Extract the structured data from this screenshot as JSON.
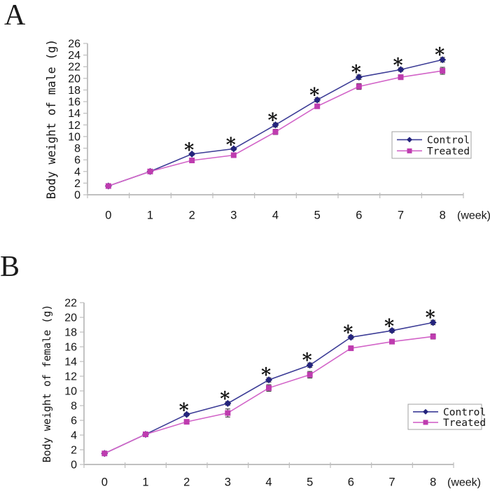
{
  "figure": {
    "background": "#ffffff",
    "panels": [
      {
        "label": "A"
      },
      {
        "label": "B"
      }
    ]
  },
  "chart_data": [
    {
      "type": "line",
      "panel": "A",
      "ylabel": "Body weight of male (g)",
      "xlabel": "(week)",
      "x": [
        0,
        1,
        2,
        3,
        4,
        5,
        6,
        7,
        8
      ],
      "yticks": [
        0,
        2,
        4,
        6,
        8,
        10,
        12,
        14,
        16,
        18,
        20,
        22,
        24,
        26
      ],
      "ylim": [
        0,
        26
      ],
      "grid": false,
      "legend_position": "right-middle",
      "axis_color": "#9a9a9a",
      "tick_color": "#bdbdbd",
      "text_color": "#141414",
      "error_bar_color": "#3a3a3a",
      "significance": {
        "symbol": "*",
        "x": [
          2,
          3,
          4,
          5,
          6,
          7,
          8
        ],
        "above_series": "Control"
      },
      "series": [
        {
          "name": "Control",
          "marker": "diamond",
          "line_color": "#3C3C96",
          "marker_color": "#24247C",
          "values": [
            1.5,
            4.0,
            7.0,
            7.9,
            12.0,
            16.3,
            20.2,
            21.5,
            23.2
          ],
          "errors": [
            0.15,
            0.15,
            0.2,
            0.25,
            0.35,
            0.35,
            0.4,
            0.3,
            0.4
          ]
        },
        {
          "name": "Treated",
          "marker": "square",
          "line_color": "#D264C8",
          "marker_color": "#BE3CAF",
          "values": [
            1.5,
            4.0,
            5.9,
            6.8,
            10.8,
            15.2,
            18.6,
            20.2,
            21.3
          ],
          "errors": [
            0.15,
            0.15,
            0.2,
            0.25,
            0.45,
            0.35,
            0.5,
            0.4,
            0.6
          ]
        }
      ]
    },
    {
      "type": "line",
      "panel": "B",
      "ylabel": "Body weight of female (g)",
      "xlabel": "(week)",
      "x": [
        0,
        1,
        2,
        3,
        4,
        5,
        6,
        7,
        8
      ],
      "yticks": [
        0,
        2,
        4,
        6,
        8,
        10,
        12,
        14,
        16,
        18,
        20,
        22
      ],
      "ylim": [
        0,
        22
      ],
      "grid": false,
      "legend_position": "right-middle",
      "axis_color": "#9a9a9a",
      "tick_color": "#bdbdbd",
      "text_color": "#141414",
      "error_bar_color": "#3a3a3a",
      "significance": {
        "symbol": "*",
        "x": [
          2,
          3,
          4,
          5,
          6,
          7,
          8
        ],
        "above_series": "Control"
      },
      "series": [
        {
          "name": "Control",
          "marker": "diamond",
          "line_color": "#3C3C96",
          "marker_color": "#24247C",
          "values": [
            1.5,
            4.1,
            6.8,
            8.3,
            11.5,
            13.5,
            17.3,
            18.2,
            19.3
          ],
          "errors": [
            0.15,
            0.15,
            0.2,
            0.25,
            0.3,
            0.3,
            0.25,
            0.25,
            0.3
          ]
        },
        {
          "name": "Treated",
          "marker": "square",
          "line_color": "#D264C8",
          "marker_color": "#BE3CAF",
          "values": [
            1.5,
            4.1,
            5.8,
            7.0,
            10.4,
            12.2,
            15.8,
            16.7,
            17.4
          ],
          "errors": [
            0.2,
            0.15,
            0.25,
            0.55,
            0.45,
            0.45,
            0.3,
            0.3,
            0.35
          ]
        }
      ]
    }
  ]
}
